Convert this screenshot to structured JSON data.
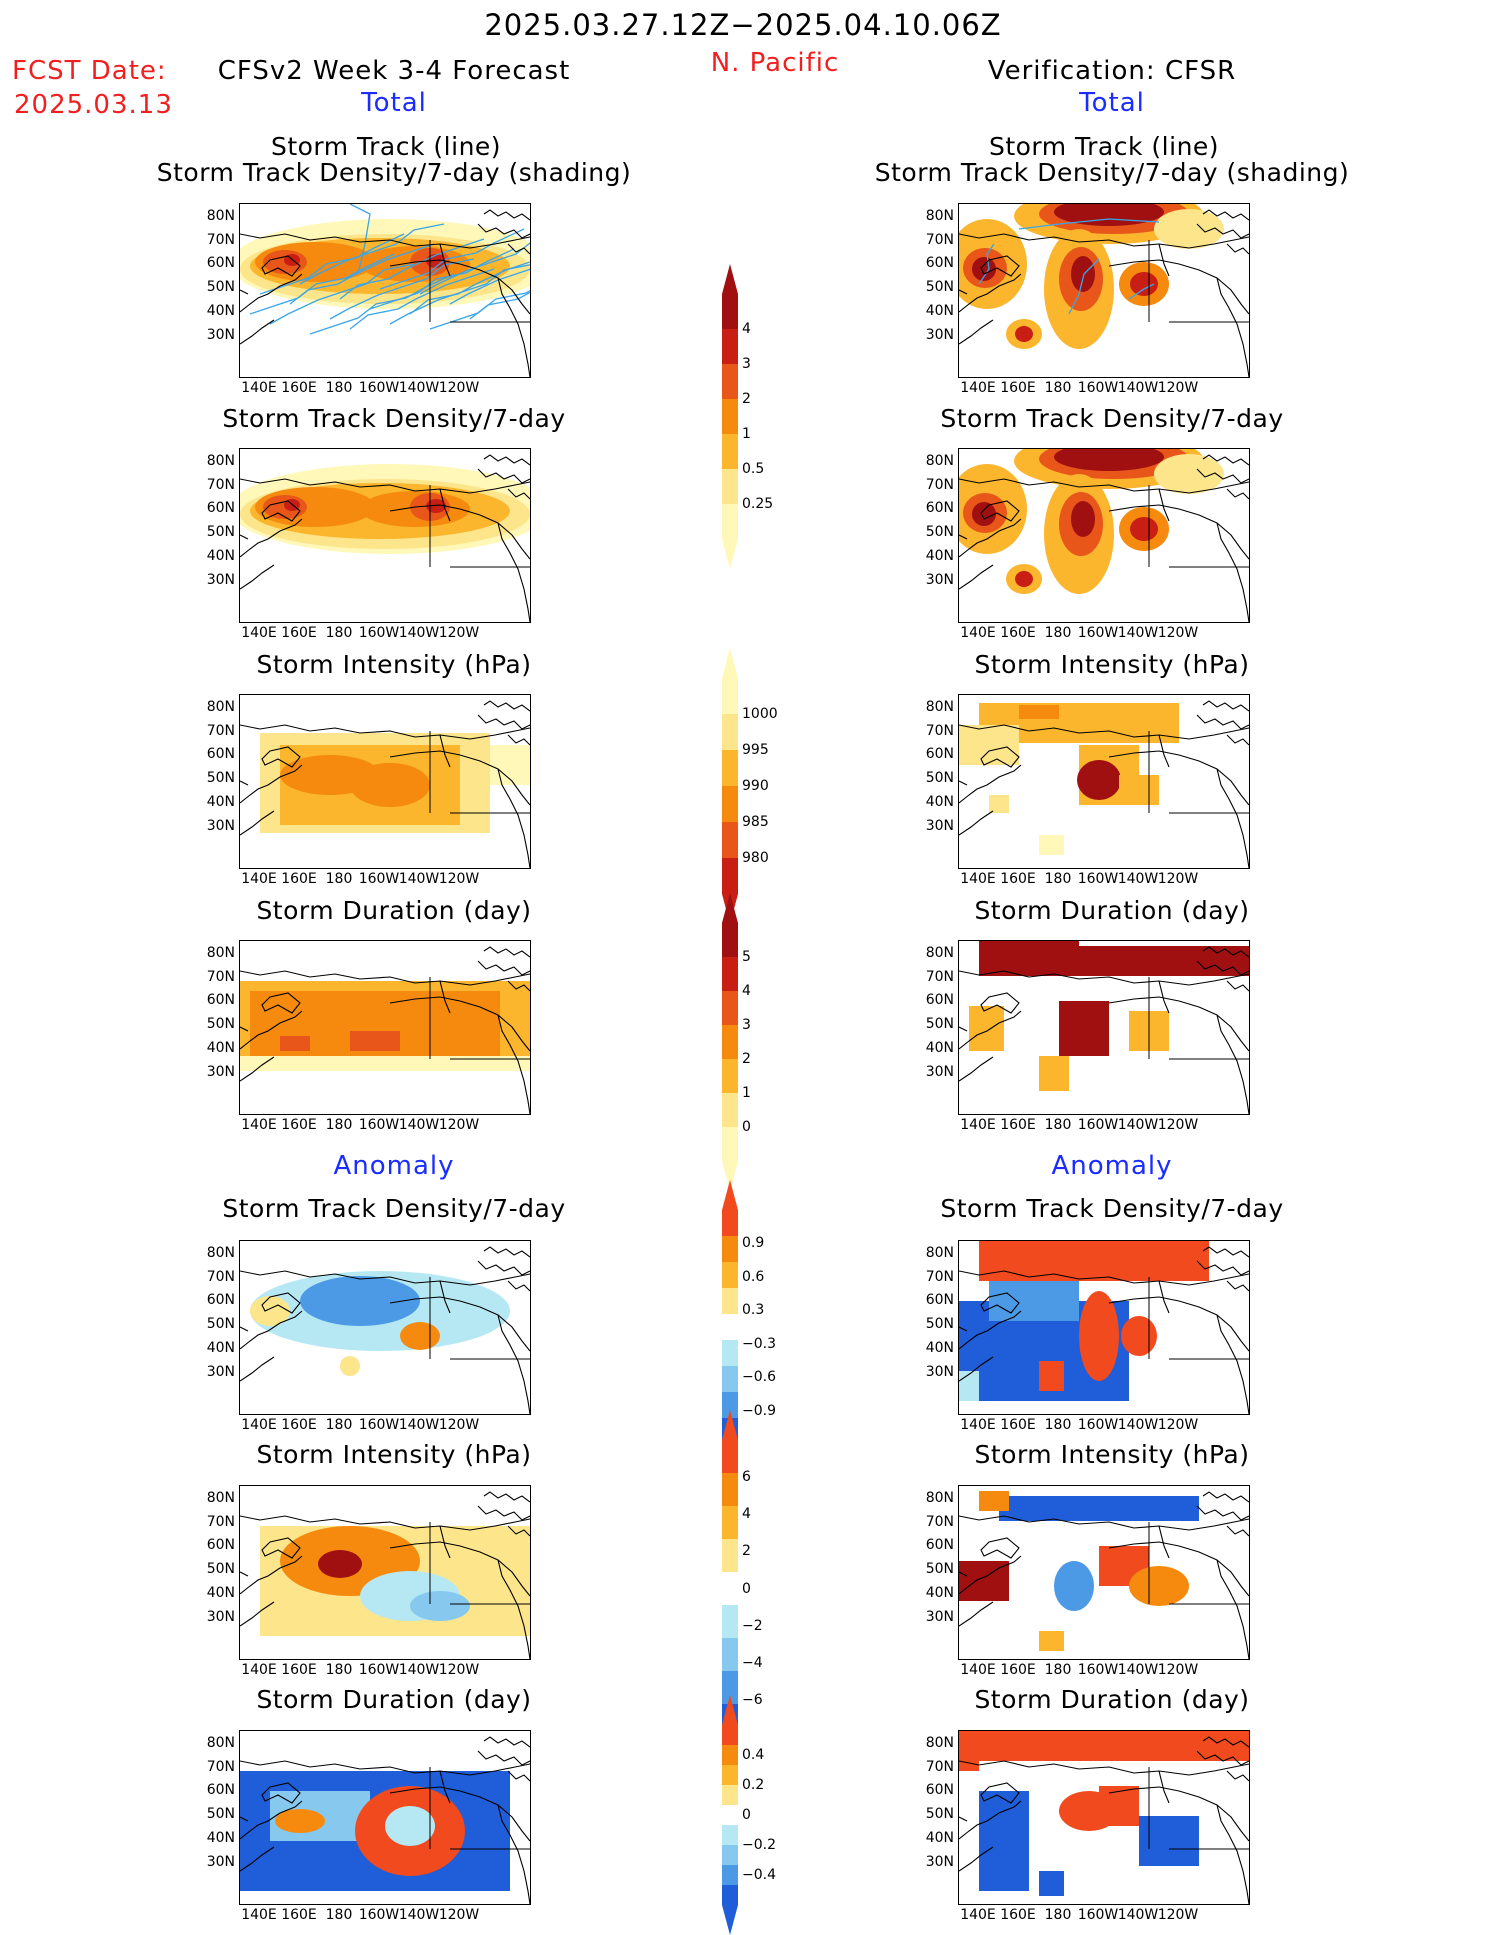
{
  "header": {
    "title": "2025.03.27.12Z−2025.04.10.06Z",
    "region": "N. Pacific",
    "fcst_label": "FCST Date:",
    "fcst_date": "2025.03.13",
    "left_heading": "CFSv2 Week 3-4 Forecast",
    "right_heading": "Verification: CFSR",
    "total_label": "Total",
    "anomaly_label": "Anomaly"
  },
  "axes": {
    "lat_labels": [
      "80N",
      "70N",
      "60N",
      "50N",
      "40N",
      "30N"
    ],
    "lon_labels": [
      "140E",
      "160E",
      "180",
      "160W",
      "140W",
      "120W"
    ]
  },
  "panels": {
    "track_line_title": "Storm Track (line)",
    "track_shading_title": "Storm Track Density/7-day (shading)",
    "density_title": "Storm Track Density/7-day",
    "intensity_title": "Storm Intensity (hPa)",
    "duration_title": "Storm Duration (day)"
  },
  "colorbars": {
    "density_total": [
      "4",
      "3",
      "2",
      "1",
      "0.5",
      "0.25"
    ],
    "intensity_total": [
      "1000",
      "995",
      "990",
      "985",
      "980"
    ],
    "duration_total": [
      "5",
      "4",
      "3",
      "2",
      "1",
      "0"
    ],
    "density_anom": [
      "0.9",
      "0.6",
      "0.3",
      "−0.3",
      "−0.6",
      "−0.9"
    ],
    "intensity_anom": [
      "6",
      "4",
      "2",
      "0",
      "−2",
      "−4",
      "−6"
    ],
    "duration_anom": [
      "0.4",
      "0.2",
      "0",
      "−0.2",
      "−0.4"
    ]
  },
  "colors": {
    "total_scale": [
      "#fff8b8",
      "#fde58c",
      "#fbb62e",
      "#f58a0e",
      "#e8561a",
      "#c81e14",
      "#a01010"
    ],
    "anom_pos": [
      "#fde58c",
      "#fbb62e",
      "#f58a0e",
      "#f04a1e"
    ],
    "anom_neg": [
      "#b6e8f4",
      "#86c8ee",
      "#4c9ae6",
      "#1f5ed8"
    ],
    "track_line": "#3aa6e8"
  }
}
